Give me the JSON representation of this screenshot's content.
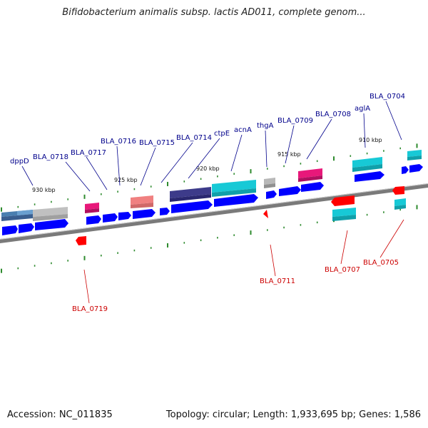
{
  "title": "Bifidobacterium animalis subsp. lactis AD011, complete genom...",
  "footer": {
    "accession": "Accession: NC_011835",
    "topology": "Topology: circular; Length: 1,933,695 bp; Genes: 1,586"
  },
  "ruler": {
    "unit": "kbp",
    "ticks": [
      {
        "label": "930 kbp"
      },
      {
        "label": "925 kbp"
      },
      {
        "label": "920 kbp"
      },
      {
        "label": "915 kbp"
      },
      {
        "label": "910 kbp"
      }
    ]
  },
  "forward_genes": [
    {
      "label": "dppD",
      "color": "#0000ff"
    },
    {
      "label": "BLA_0718",
      "color": "#0000ff"
    },
    {
      "label": "BLA_0717",
      "color": "#0000ff"
    },
    {
      "label": "BLA_0716",
      "color": "#0000ff"
    },
    {
      "label": "BLA_0715",
      "color": "#0000ff"
    },
    {
      "label": "BLA_0714",
      "color": "#0000ff"
    },
    {
      "label": "ctpE",
      "color": "#0000ff"
    },
    {
      "label": "acnA",
      "color": "#0000ff"
    },
    {
      "label": "thgA",
      "color": "#0000ff"
    },
    {
      "label": "BLA_0709",
      "color": "#0000ff"
    },
    {
      "label": "BLA_0708",
      "color": "#0000ff"
    },
    {
      "label": "aglA",
      "color": "#0000ff"
    },
    {
      "label": "BLA_0704",
      "color": "#0000ff"
    }
  ],
  "reverse_genes": [
    {
      "label": "BLA_0719",
      "color": "#ff0000"
    },
    {
      "label": "BLA_0711",
      "color": "#ff0000"
    },
    {
      "label": "BLA_0707",
      "color": "#ff0000"
    },
    {
      "label": "BLA_0705",
      "color": "#ff0000"
    }
  ],
  "colors": {
    "forward": "#0000ff",
    "reverse": "#ff0000",
    "label_forward": "#00008b",
    "label_reverse": "#cc0000",
    "backbone": "#7a7a7a",
    "tick": "#2e8b2e",
    "cog_magenta": "#e8187a",
    "cog_cyan": "#17c9d6",
    "cog_purple": "#3d3b8a",
    "cog_grey": "#b0b0b0",
    "cog_salmon": "#f08080",
    "cog_steel": "#4a7fb0"
  }
}
